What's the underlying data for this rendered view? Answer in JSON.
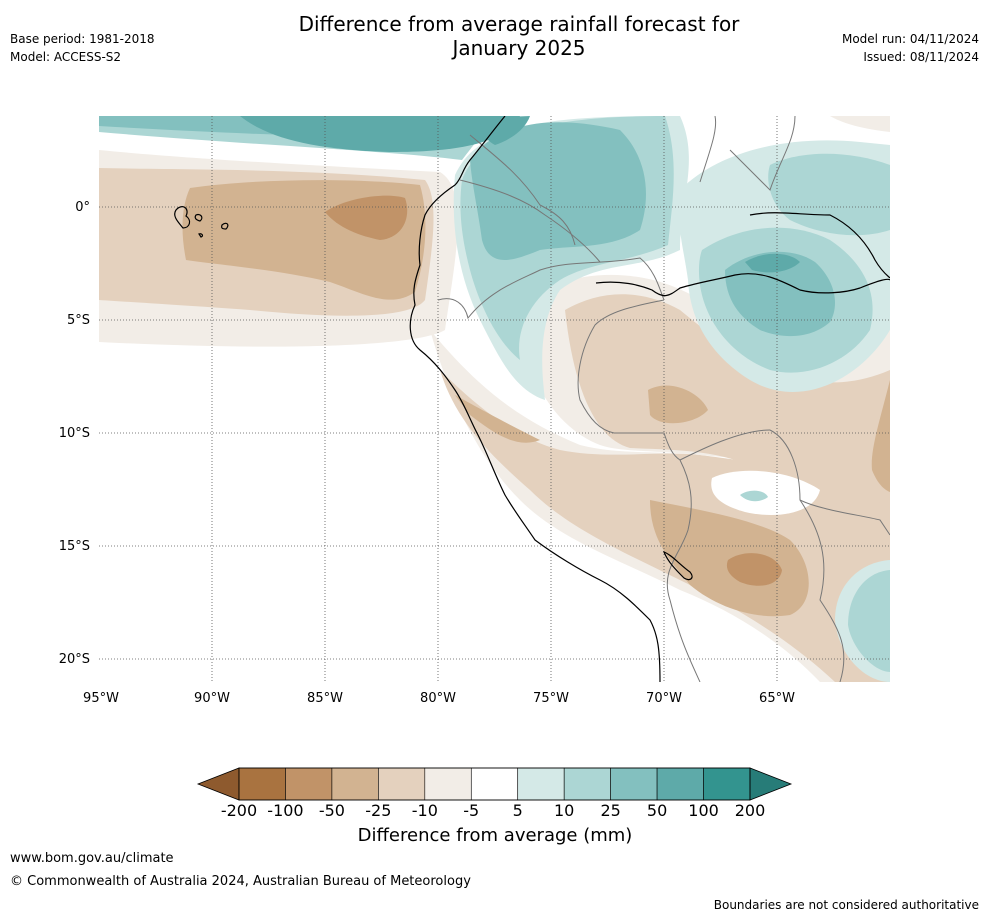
{
  "title_line1": "Difference from average rainfall forecast for",
  "title_line2": "January 2025",
  "base_period": "Base period: 1981-2018",
  "model": "Model: ACCESS-S2",
  "model_run": "Model run: 04/11/2024",
  "issued": "Issued: 08/11/2024",
  "lat_labels": [
    "0°",
    "5°S",
    "10°S",
    "15°S",
    "20°S"
  ],
  "lon_labels": [
    "95°W",
    "90°W",
    "85°W",
    "80°W",
    "75°W",
    "70°W",
    "65°W"
  ],
  "colorbar": {
    "labels": [
      "-200",
      "-100",
      "-50",
      "-25",
      "-10",
      "-5",
      "5",
      "10",
      "25",
      "50",
      "100",
      "200"
    ],
    "colors": [
      "#8e5a2e",
      "#a97340",
      "#c19368",
      "#d2b391",
      "#e4d1be",
      "#f2ede7",
      "#ffffff",
      "#d4e9e7",
      "#acd6d4",
      "#83c0bf",
      "#5eaaa9",
      "#33948f",
      "#277c78"
    ],
    "title": "Difference from average (mm)"
  },
  "footer": {
    "url": "www.bom.gov.au/climate",
    "copyright": "© Commonwealth of Australia 2024, Australian Bureau of Meteorology",
    "note": "Boundaries are not considered authoritative"
  }
}
